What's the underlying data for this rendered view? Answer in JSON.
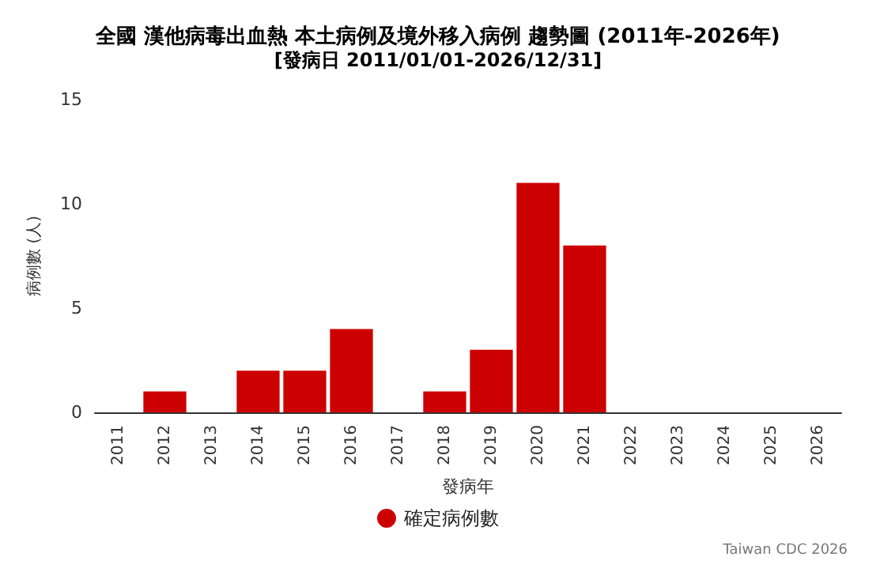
{
  "chart_data": {
    "type": "bar",
    "title": "全國 漢他病毒出血熱 本土病例及境外移入病例 趨勢圖 (2011年-2026年)",
    "subtitle": "[發病日 2011/01/01-2026/12/31]",
    "xlabel": "發病年",
    "ylabel": "病例數 (人)",
    "categories": [
      "2011",
      "2012",
      "2013",
      "2014",
      "2015",
      "2016",
      "2017",
      "2018",
      "2019",
      "2020",
      "2021",
      "2022",
      "2023",
      "2024",
      "2025",
      "2026"
    ],
    "series": [
      {
        "name": "確定病例數",
        "color": "#cc0000",
        "values": [
          0,
          1,
          0,
          2,
          2,
          4,
          0,
          1,
          3,
          11,
          8,
          0,
          0,
          0,
          0,
          0
        ]
      }
    ],
    "ylim": [
      0,
      15
    ],
    "yticks": [
      0,
      5,
      10,
      15
    ],
    "grid": false,
    "legend": "bottom",
    "annotations": [
      "Taiwan CDC 2026"
    ]
  }
}
